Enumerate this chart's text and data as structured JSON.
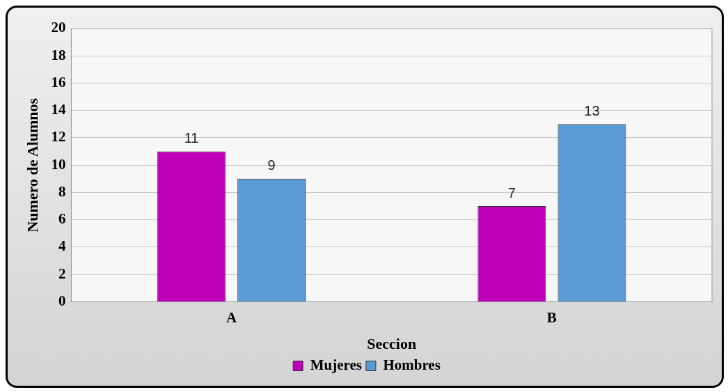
{
  "chart_data": {
    "type": "bar",
    "xlabel": "Seccion",
    "ylabel": "Numero de Alumnos",
    "categories": [
      "A",
      "B"
    ],
    "series": [
      {
        "name": "Mujeres",
        "color": "#c000b8",
        "values": [
          11,
          7
        ]
      },
      {
        "name": "Hombres",
        "color": "#5b9bd5",
        "values": [
          9,
          13
        ]
      }
    ],
    "ylim": [
      0,
      20
    ],
    "yticks": [
      0,
      2,
      4,
      6,
      8,
      10,
      12,
      14,
      16,
      18,
      20
    ],
    "grid": "y",
    "legend": "bottom",
    "data_labels": true
  }
}
